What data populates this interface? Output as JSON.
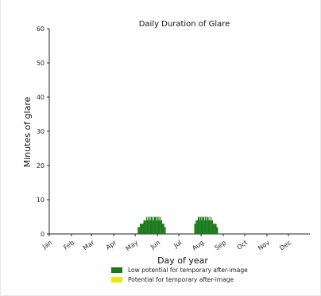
{
  "colors": {
    "low": "#1a7a1a",
    "potential": "#e8e800",
    "axis": "#222222"
  },
  "chart_data": {
    "type": "bar",
    "title": "Daily Duration of Glare",
    "xlabel": "Day of year",
    "ylabel": "Minutes of glare",
    "ylim": [
      0,
      60
    ],
    "xlim": [
      1,
      365
    ],
    "yticks": [
      0,
      10,
      20,
      30,
      40,
      50,
      60
    ],
    "month_labels": [
      "Jan",
      "Feb",
      "Mar",
      "Apr",
      "May",
      "Jun",
      "Jul",
      "Aug",
      "Sep",
      "Oct",
      "Nov",
      "Dec"
    ],
    "month_days": [
      1,
      32,
      60,
      91,
      121,
      152,
      182,
      213,
      244,
      274,
      305,
      335
    ],
    "grid": false,
    "legend_position": "bottom",
    "series": [
      {
        "name": "Low potential for temporary after-image",
        "color": "#1a7a1a",
        "segments": [
          {
            "x_start": 125,
            "values": [
              2,
              2,
              2,
              3,
              3,
              3,
              3,
              3,
              4,
              4,
              4,
              4,
              5,
              4,
              5,
              4,
              5,
              4,
              5,
              5,
              4,
              5,
              4,
              5,
              5,
              4,
              5,
              5,
              4,
              5,
              4,
              5,
              4,
              4,
              3,
              3,
              3,
              2,
              2
            ]
          },
          {
            "x_start": 204,
            "values": [
              3,
              3,
              4,
              4,
              4,
              5,
              5,
              4,
              5,
              5,
              4,
              5,
              5,
              5,
              4,
              5,
              4,
              5,
              5,
              4,
              5,
              4,
              4,
              5,
              4,
              4,
              3,
              3,
              3,
              3,
              3,
              2,
              2
            ]
          }
        ]
      },
      {
        "name": "Potential for temporary after-image",
        "color": "#e8e800",
        "segments": []
      }
    ]
  }
}
